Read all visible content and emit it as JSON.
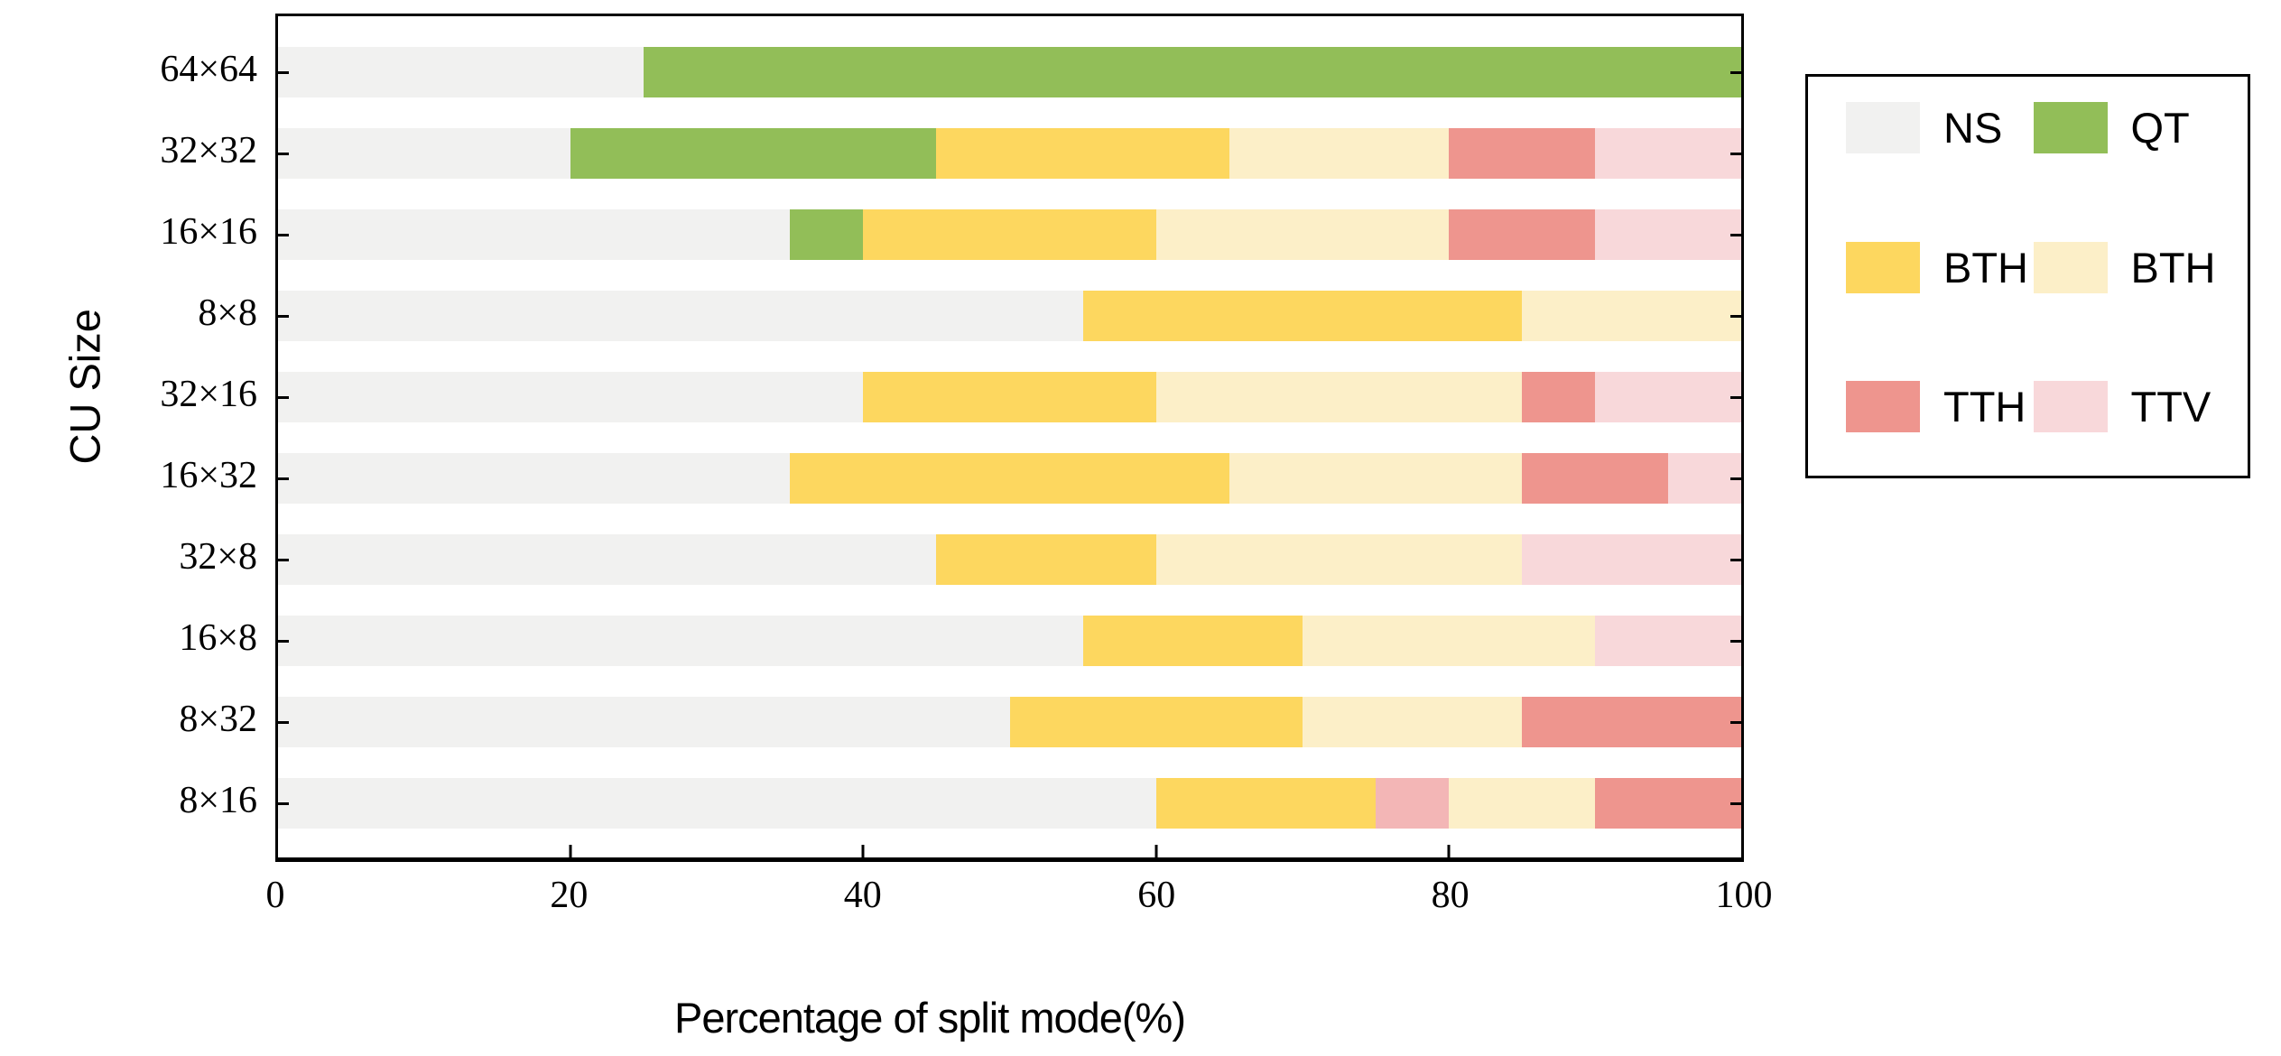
{
  "chart_data": {
    "type": "bar",
    "orientation": "horizontal",
    "stacked": true,
    "xlabel": "Percentage of split mode(%)",
    "ylabel": "CU Size",
    "xlim": [
      0,
      100
    ],
    "xticks": [
      "0",
      "20",
      "40",
      "60",
      "80",
      "100"
    ],
    "grid": false,
    "legend_position": "right-outside",
    "series": [
      {
        "id": "NS",
        "label": "NS",
        "color": "#f1f1f0"
      },
      {
        "id": "QT",
        "label": "QT",
        "color": "#92be58"
      },
      {
        "id": "BTH",
        "label": "BTH",
        "color": "#fdd75f"
      },
      {
        "id": "BTV",
        "label": "BTH",
        "color": "#fcefc8"
      },
      {
        "id": "TTH",
        "label": "TTH",
        "color": "#ee958e"
      },
      {
        "id": "TTV",
        "label": "TTV",
        "color": "#f8d8da"
      }
    ],
    "categories": [
      "64×64",
      "32×32",
      "16×16",
      "8×8",
      "32×16",
      "16×32",
      "32×8",
      "16×8",
      "8×32",
      "8×16"
    ],
    "rows": [
      {
        "category": "64×64",
        "segments": [
          {
            "series": "NS",
            "value": 25
          },
          {
            "series": "QT",
            "value": 75
          }
        ]
      },
      {
        "category": "32×32",
        "segments": [
          {
            "series": "NS",
            "value": 20
          },
          {
            "series": "QT",
            "value": 25
          },
          {
            "series": "BTH",
            "value": 20
          },
          {
            "series": "BTV",
            "value": 15
          },
          {
            "series": "TTH",
            "value": 10
          },
          {
            "series": "TTV",
            "value": 10
          }
        ]
      },
      {
        "category": "16×16",
        "segments": [
          {
            "series": "NS",
            "value": 35
          },
          {
            "series": "QT",
            "value": 5
          },
          {
            "series": "BTH",
            "value": 20
          },
          {
            "series": "BTV",
            "value": 20
          },
          {
            "series": "TTH",
            "value": 10
          },
          {
            "series": "TTV",
            "value": 10
          }
        ]
      },
      {
        "category": "8×8",
        "segments": [
          {
            "series": "NS",
            "value": 55
          },
          {
            "series": "BTH",
            "value": 30
          },
          {
            "series": "BTV",
            "value": 15
          }
        ]
      },
      {
        "category": "32×16",
        "segments": [
          {
            "series": "NS",
            "value": 40
          },
          {
            "series": "BTH",
            "value": 20
          },
          {
            "series": "BTV",
            "value": 25
          },
          {
            "series": "TTH",
            "value": 5
          },
          {
            "series": "TTV",
            "value": 10
          }
        ]
      },
      {
        "category": "16×32",
        "segments": [
          {
            "series": "NS",
            "value": 35
          },
          {
            "series": "BTH",
            "value": 30
          },
          {
            "series": "BTV",
            "value": 20
          },
          {
            "series": "TTH",
            "value": 10
          },
          {
            "series": "TTV",
            "value": 5
          }
        ]
      },
      {
        "category": "32×8",
        "segments": [
          {
            "series": "NS",
            "value": 45
          },
          {
            "series": "BTH",
            "value": 15
          },
          {
            "series": "BTV",
            "value": 25
          },
          {
            "series": "TTV",
            "value": 15
          }
        ]
      },
      {
        "category": "16×8",
        "segments": [
          {
            "series": "NS",
            "value": 55
          },
          {
            "series": "BTH",
            "value": 15
          },
          {
            "series": "BTV",
            "value": 20
          },
          {
            "series": "TTV",
            "value": 10
          }
        ]
      },
      {
        "category": "8×32",
        "segments": [
          {
            "series": "NS",
            "value": 50
          },
          {
            "series": "BTH",
            "value": 20
          },
          {
            "series": "BTV",
            "value": 15
          },
          {
            "series": "TTH",
            "value": 15
          }
        ]
      },
      {
        "category": "8×16",
        "segments": [
          {
            "series": "NS",
            "value": 60
          },
          {
            "series": "BTH",
            "value": 15
          },
          {
            "series": "TTV",
            "value": 5,
            "color": "#f3b6b6"
          },
          {
            "series": "BTV",
            "value": 10
          },
          {
            "series": "TTH",
            "value": 10
          }
        ]
      }
    ],
    "legend_rows": [
      [
        {
          "series": "NS",
          "label": "NS"
        },
        {
          "series": "QT",
          "label": "QT"
        }
      ],
      [
        {
          "series": "BTH",
          "label": "BTH"
        },
        {
          "series": "BTV",
          "label": "BTH"
        }
      ],
      [
        {
          "series": "TTH",
          "label": "TTH"
        },
        {
          "series": "TTV",
          "label": "TTV"
        }
      ]
    ]
  },
  "axes": {
    "x_title": "Percentage of split mode(%)",
    "y_title": "CU Size"
  }
}
